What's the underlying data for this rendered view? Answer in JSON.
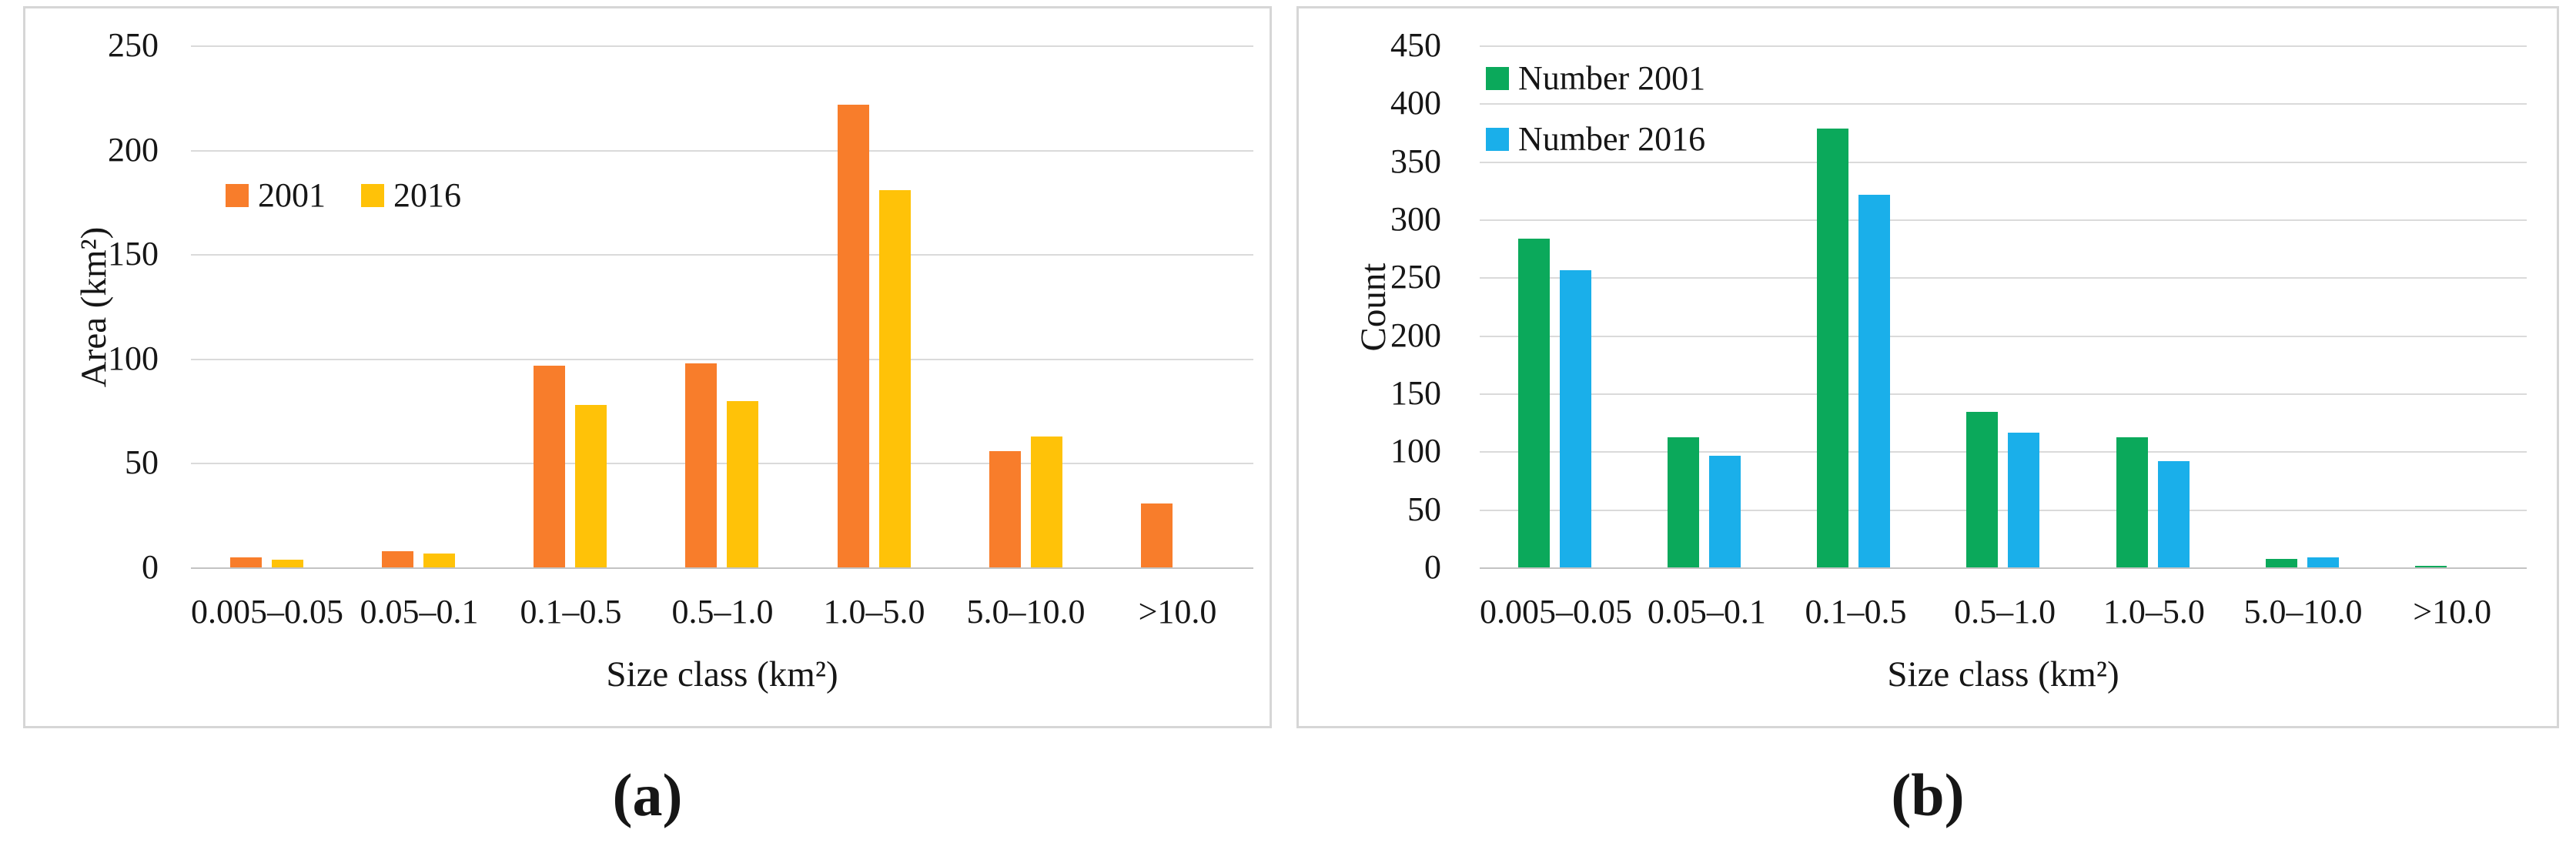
{
  "chart_data": [
    {
      "id": "a",
      "type": "bar",
      "caption": "(a)",
      "ylabel": "Area (km²)",
      "xlabel": "Size class (km²)",
      "ylim": [
        0,
        250
      ],
      "yticks": [
        0,
        50,
        100,
        150,
        200,
        250
      ],
      "grid": true,
      "legend_position": "inside-top-left-horizontal",
      "categories": [
        "0.005–0.05",
        "0.05–0.1",
        "0.1–0.5",
        "0.5–1.0",
        "1.0–5.0",
        "5.0–10.0",
        ">10.0"
      ],
      "series": [
        {
          "name": "2001",
          "color": "#f87d2b",
          "values": [
            5,
            8,
            97,
            98,
            222,
            56,
            31
          ]
        },
        {
          "name": "2016",
          "color": "#ffc208",
          "values": [
            4,
            7,
            78,
            80,
            181,
            63,
            0
          ]
        }
      ]
    },
    {
      "id": "b",
      "type": "bar",
      "caption": "(b)",
      "ylabel": "Count",
      "xlabel": "Size class (km²)",
      "ylim": [
        0,
        450
      ],
      "yticks": [
        0,
        50,
        100,
        150,
        200,
        250,
        300,
        350,
        400,
        450
      ],
      "grid": true,
      "legend_position": "inside-top-left-vertical",
      "categories": [
        "0.005–0.05",
        "0.05–0.1",
        "0.1–0.5",
        "0.5–1.0",
        "1.0–5.0",
        "5.0–10.0",
        ">10.0"
      ],
      "series": [
        {
          "name": "Number 2001",
          "color": "#0ba95b",
          "values": [
            284,
            113,
            379,
            135,
            113,
            8,
            2
          ]
        },
        {
          "name": "Number 2016",
          "color": "#1aafea",
          "values": [
            257,
            97,
            322,
            117,
            92,
            9,
            0
          ]
        }
      ]
    }
  ]
}
